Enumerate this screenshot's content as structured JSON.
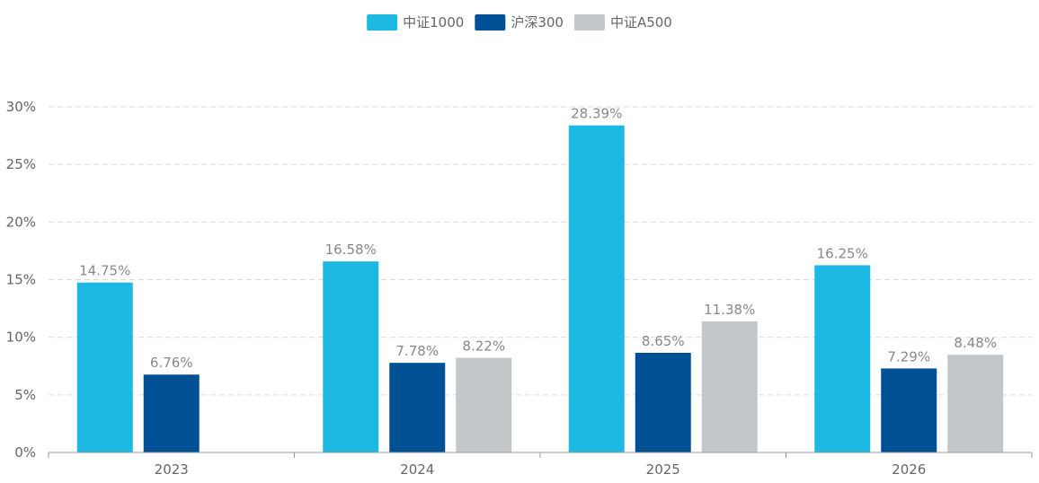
{
  "chart_data": {
    "type": "bar",
    "categories": [
      "2023",
      "2024",
      "2025",
      "2026"
    ],
    "series": [
      {
        "name": "中证1000",
        "color": "#1eb9e3",
        "values": [
          14.75,
          16.58,
          28.39,
          16.25
        ],
        "labels": [
          "14.75%",
          "16.58%",
          "28.39%",
          "16.25%"
        ]
      },
      {
        "name": "沪深300",
        "color": "#005095",
        "values": [
          6.76,
          7.78,
          8.65,
          7.29
        ],
        "labels": [
          "6.76%",
          "7.78%",
          "8.65%",
          "7.29%"
        ]
      },
      {
        "name": "中证A500",
        "color": "#c3c7c9",
        "values": [
          null,
          8.22,
          11.38,
          8.48
        ],
        "labels": [
          null,
          "8.22%",
          "11.38%",
          "8.48%"
        ]
      }
    ],
    "ylim": [
      0,
      30
    ],
    "yticks": [
      0,
      5,
      10,
      15,
      20,
      25,
      30
    ],
    "ytick_labels": [
      "0%",
      "5%",
      "10%",
      "15%",
      "20%",
      "25%",
      "30%"
    ],
    "legend_position": "top-center",
    "grid": true
  }
}
